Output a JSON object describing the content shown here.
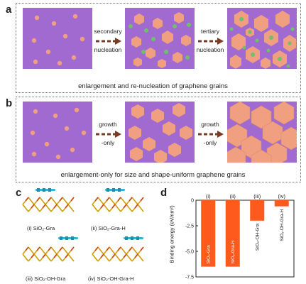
{
  "figure": {
    "panel_a": {
      "label": "a",
      "arrow1": [
        "secondary",
        "nucleation"
      ],
      "arrow2": [
        "tertiary",
        "nucleation"
      ],
      "caption": "enlargement and re-nucleation of graphene grains"
    },
    "panel_b": {
      "label": "b",
      "arrow1": [
        "growth",
        "-only"
      ],
      "arrow2": [
        "growth",
        "-only"
      ],
      "caption": "enlargement-only for size and shape-uniform graphene grains"
    },
    "panel_c": {
      "label": "c",
      "structures": [
        "(i) SiO₂-Gra",
        "(ii) SiO₂-Gra-H",
        "(iii) SiO₂-OH-Gra",
        "(iv) SiO₂-OH-Gra-H"
      ]
    },
    "panel_d": {
      "label": "d"
    },
    "colors": {
      "background_purple": "#a06ad0",
      "grain_orange": "#f0a080",
      "nucleus_green": "#6fc06a",
      "bar_orange": "#ff5a1e"
    }
  },
  "chart_data": {
    "type": "bar",
    "categories": [
      "(i)",
      "(ii)",
      "(iii)",
      "(iv)"
    ],
    "values": [
      -6.5,
      -6.5,
      -2.0,
      -0.6
    ],
    "bar_labels": [
      "SiO₂-Gra",
      "SiO₂-Gra-H",
      "SiO₂-OH-Gra",
      "SiO₂-OH-Gra-H"
    ],
    "ylabel": "Binding energy (eV/nm²)",
    "ylim": [
      -7.5,
      0
    ],
    "yticks": [
      "0",
      "-2.5",
      "-5.0",
      "-7.5"
    ],
    "ytick_values": [
      0,
      -2.5,
      -5.0,
      -7.5
    ]
  }
}
